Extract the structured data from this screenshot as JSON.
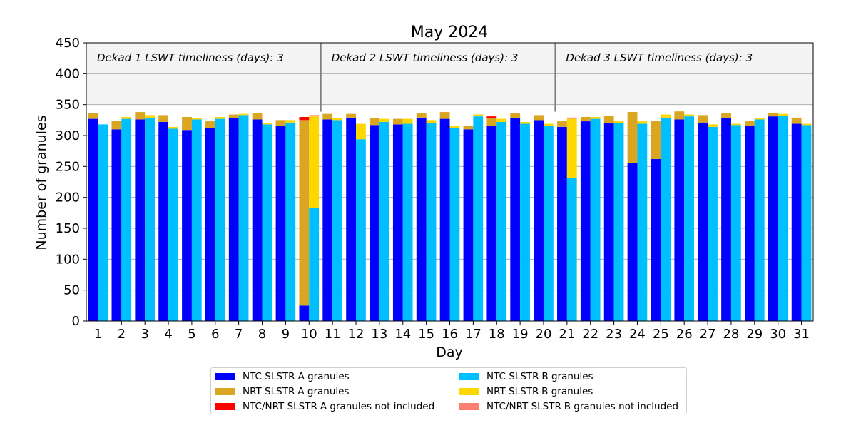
{
  "chart_data": {
    "type": "bar",
    "title": "May 2024",
    "xlabel": "Day",
    "ylabel": "Number of granules",
    "ylim": [
      0,
      450
    ],
    "yticks": [
      0,
      50,
      100,
      150,
      200,
      250,
      300,
      350,
      400,
      450
    ],
    "grid": "horizontal",
    "categories": [
      "1",
      "2",
      "3",
      "4",
      "5",
      "6",
      "7",
      "8",
      "9",
      "10",
      "11",
      "12",
      "13",
      "14",
      "15",
      "16",
      "17",
      "18",
      "19",
      "20",
      "21",
      "22",
      "23",
      "24",
      "25",
      "26",
      "27",
      "28",
      "29",
      "30",
      "31"
    ],
    "series": [
      {
        "name": "NTC SLSTR-A granules",
        "color": "#0000ff",
        "group": "A",
        "values": [
          327,
          310,
          326,
          322,
          309,
          312,
          328,
          326,
          316,
          25,
          326,
          329,
          317,
          318,
          329,
          327,
          310,
          315,
          328,
          325,
          314,
          323,
          320,
          256,
          262,
          326,
          321,
          328,
          315,
          331,
          319
        ]
      },
      {
        "name": "NRT SLSTR-A granules",
        "color": "#daa520",
        "group": "A",
        "values": [
          9,
          14,
          12,
          11,
          21,
          11,
          6,
          10,
          9,
          300,
          9,
          6,
          11,
          9,
          7,
          11,
          6,
          13,
          8,
          8,
          9,
          7,
          12,
          82,
          61,
          13,
          12,
          8,
          9,
          6,
          10
        ]
      },
      {
        "name": "NTC/NRT SLSTR-A granules not included",
        "color": "#ff0000",
        "group": "A",
        "values": [
          0,
          0,
          0,
          0,
          0,
          0,
          0,
          0,
          0,
          5,
          0,
          0,
          0,
          0,
          0,
          0,
          0,
          3,
          0,
          0,
          0,
          0,
          0,
          0,
          0,
          0,
          0,
          0,
          0,
          0,
          0
        ]
      },
      {
        "name": "NTC SLSTR-B granules",
        "color": "#00bfff",
        "group": "B",
        "values": [
          318,
          327,
          329,
          311,
          326,
          327,
          333,
          318,
          321,
          183,
          325,
          294,
          322,
          319,
          320,
          312,
          331,
          322,
          319,
          316,
          232,
          327,
          320,
          319,
          329,
          331,
          314,
          317,
          326,
          332,
          317
        ]
      },
      {
        "name": "NRT SLSTR-B granules",
        "color": "#ffd700",
        "group": "B",
        "values": [
          0,
          3,
          4,
          3,
          2,
          3,
          2,
          2,
          4,
          148,
          3,
          25,
          5,
          8,
          5,
          3,
          3,
          5,
          3,
          3,
          95,
          3,
          3,
          4,
          5,
          3,
          4,
          2,
          2,
          3,
          2
        ]
      },
      {
        "name": "NTC/NRT SLSTR-B granules not included",
        "color": "#fa8072",
        "group": "B",
        "values": [
          0,
          0,
          0,
          0,
          0,
          0,
          0,
          0,
          0,
          2,
          0,
          0,
          0,
          0,
          0,
          0,
          0,
          0,
          0,
          0,
          2,
          0,
          0,
          0,
          0,
          0,
          0,
          0,
          0,
          0,
          0
        ]
      }
    ],
    "dekads": [
      {
        "label": "Dekad 1 LSWT timeliness (days): 3",
        "start_day": 1,
        "end_day": 10
      },
      {
        "label": "Dekad 2 LSWT timeliness (days): 3",
        "start_day": 11,
        "end_day": 20
      },
      {
        "label": "Dekad 3 LSWT timeliness (days): 3",
        "start_day": 21,
        "end_day": 31
      }
    ],
    "dekad_band": [
      350,
      450
    ],
    "legend_position": "bottom-center"
  }
}
